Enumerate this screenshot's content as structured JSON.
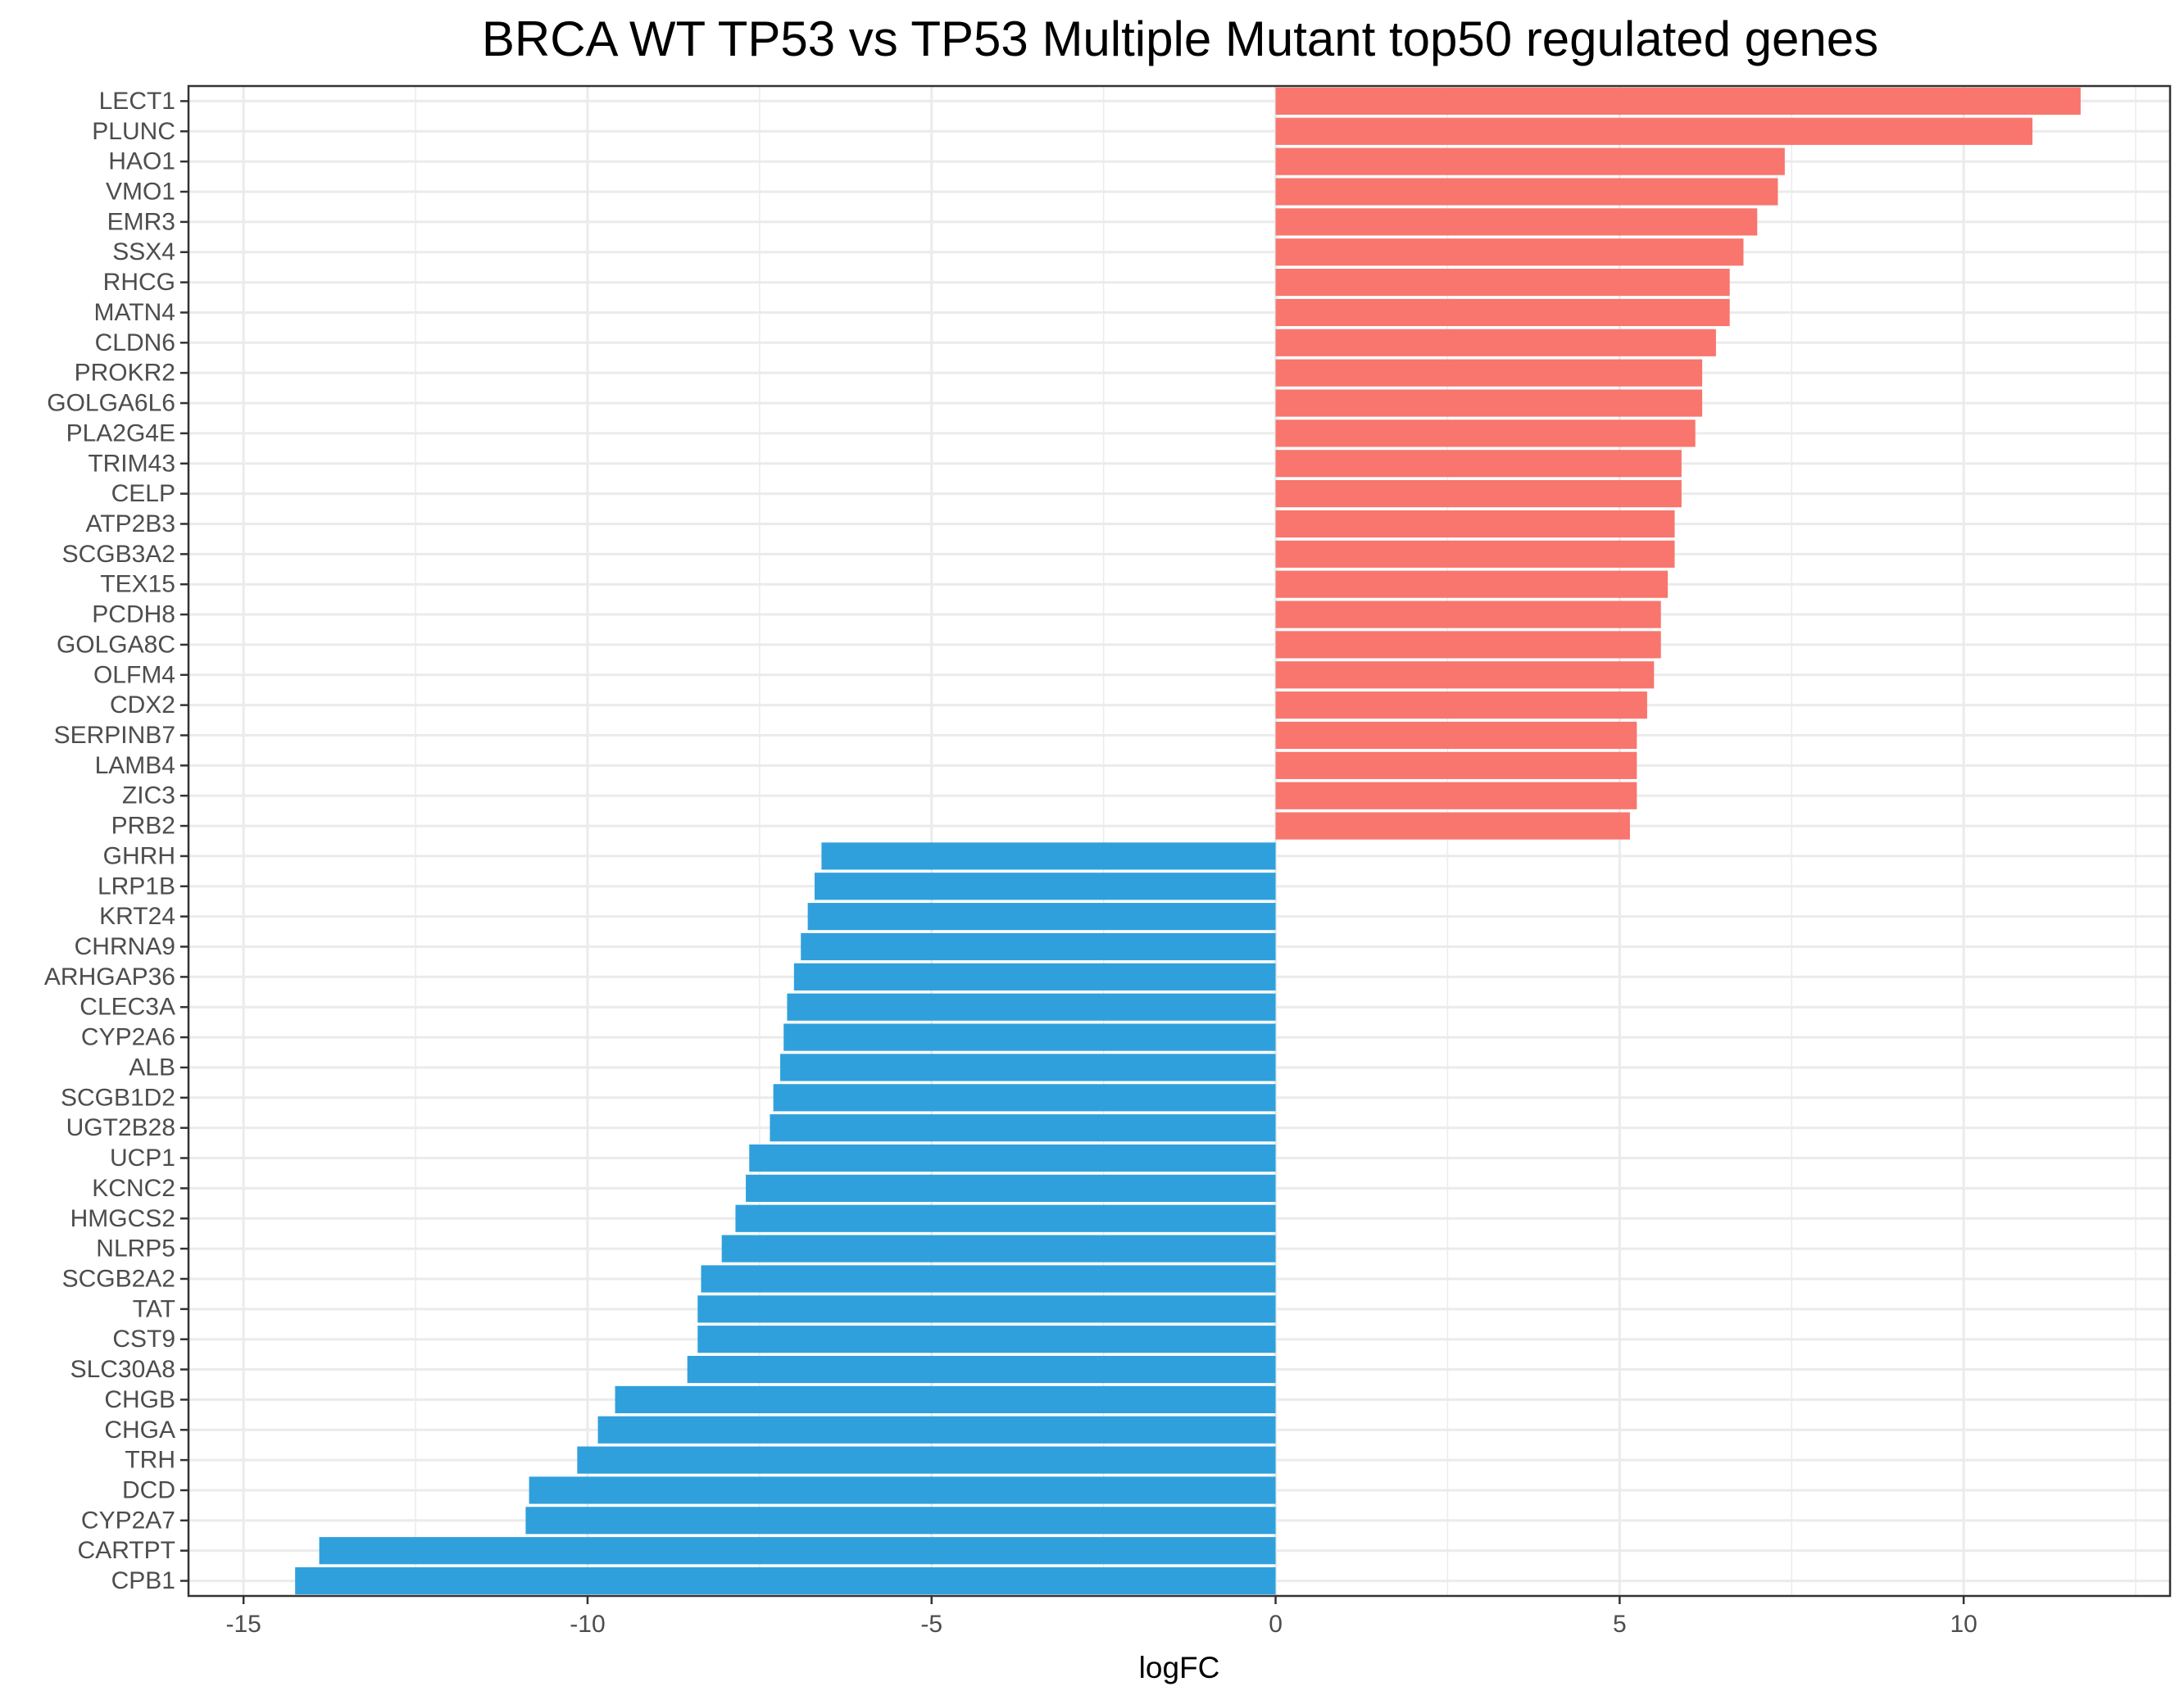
{
  "chart_data": {
    "type": "bar",
    "orientation": "horizontal",
    "title": "BRCA WT TP53 vs TP53 Multiple Mutant top50 regulated genes",
    "xlabel": "logFC",
    "ylabel": "",
    "xlim": [
      -15.8,
      13
    ],
    "x_ticks": [
      -15,
      -10,
      -5,
      0,
      5,
      10
    ],
    "x_tick_labels": [
      "-15",
      "-10",
      "-5",
      "0",
      "5",
      "10"
    ],
    "grid": true,
    "legend": "none",
    "colors": {
      "up": "#F8766D",
      "down": "#2FA0DC",
      "grid": "#EBEBEB",
      "panel_border": "#333333"
    },
    "categories": [
      "LECT1",
      "PLUNC",
      "HAO1",
      "VMO1",
      "EMR3",
      "SSX4",
      "RHCG",
      "MATN4",
      "CLDN6",
      "PROKR2",
      "GOLGA6L6",
      "PLA2G4E",
      "TRIM43",
      "CELP",
      "ATP2B3",
      "SCGB3A2",
      "TEX15",
      "PCDH8",
      "GOLGA8C",
      "OLFM4",
      "CDX2",
      "SERPINB7",
      "LAMB4",
      "ZIC3",
      "PRB2",
      "GHRH",
      "LRP1B",
      "KRT24",
      "CHRNA9",
      "ARHGAP36",
      "CLEC3A",
      "CYP2A6",
      "ALB",
      "SCGB1D2",
      "UGT2B28",
      "UCP1",
      "KCNC2",
      "HMGCS2",
      "NLRP5",
      "SCGB2A2",
      "TAT",
      "CST9",
      "SLC30A8",
      "CHGB",
      "CHGA",
      "TRH",
      "DCD",
      "CYP2A7",
      "CARTPT",
      "CPB1"
    ],
    "values": [
      11.7,
      11.0,
      7.4,
      7.3,
      7.0,
      6.8,
      6.6,
      6.6,
      6.4,
      6.2,
      6.2,
      6.1,
      5.9,
      5.9,
      5.8,
      5.8,
      5.7,
      5.6,
      5.6,
      5.5,
      5.4,
      5.25,
      5.25,
      5.25,
      5.15,
      -6.6,
      -6.7,
      -6.8,
      -6.9,
      -7.0,
      -7.1,
      -7.15,
      -7.2,
      -7.3,
      -7.35,
      -7.65,
      -7.7,
      -7.85,
      -8.05,
      -8.35,
      -8.4,
      -8.4,
      -8.55,
      -9.6,
      -9.85,
      -10.15,
      -10.85,
      -10.9,
      -13.9,
      -14.25
    ]
  }
}
